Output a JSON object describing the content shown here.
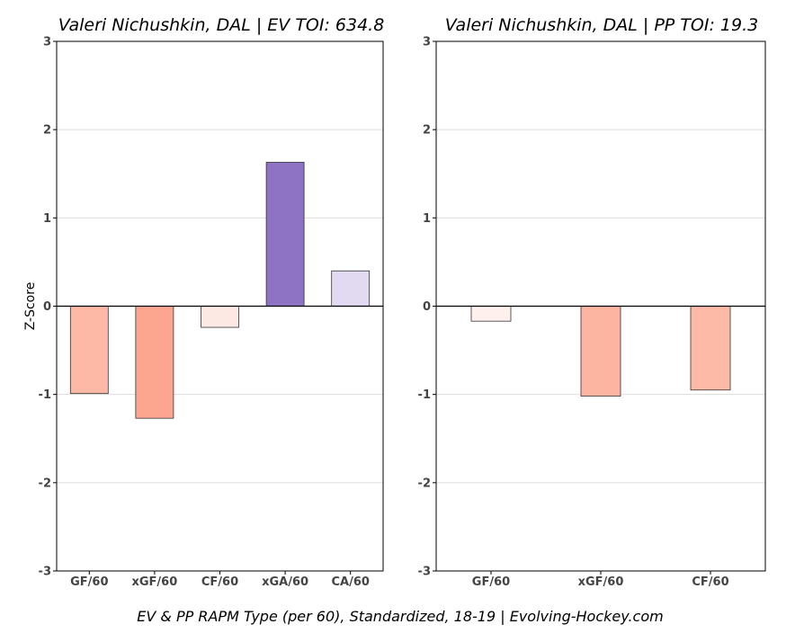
{
  "footer": "EV & PP RAPM Type (per 60), Standardized, 18-19    |    Evolving-Hockey.com",
  "chart_data": [
    {
      "type": "bar",
      "title": "Valeri Nichushkin, DAL  |  EV TOI: 634.8",
      "ylabel": "Z-Score",
      "xlabel": "",
      "ylim": [
        -3,
        3
      ],
      "yticks": [
        3,
        2,
        1,
        0,
        -1,
        -2,
        -3
      ],
      "ytick_labels": [
        "3",
        "2",
        "1",
        "0",
        "-1",
        "-2",
        "-3"
      ],
      "grid": "horizontal",
      "categories": [
        "GF/60",
        "xGF/60",
        "CF/60",
        "xGA/60",
        "CA/60"
      ],
      "values": [
        -0.99,
        -1.27,
        -0.24,
        1.63,
        0.4
      ],
      "colors": [
        "#fdb9a5",
        "#fca68f",
        "#fde9e4",
        "#8e72c3",
        "#e2daf1"
      ]
    },
    {
      "type": "bar",
      "title": "Valeri Nichushkin, DAL  |  PP TOI: 19.3",
      "ylabel": "",
      "xlabel": "",
      "ylim": [
        -3,
        3
      ],
      "yticks": [
        3,
        2,
        1,
        0,
        -1,
        -2,
        -3
      ],
      "ytick_labels": [
        "3",
        "2",
        "1",
        "0",
        "-1",
        "-2",
        "-3"
      ],
      "grid": "horizontal",
      "categories": [
        "GF/60",
        "xGF/60",
        "CF/60"
      ],
      "values": [
        -0.17,
        -1.02,
        -0.95
      ],
      "colors": [
        "#fef0ec",
        "#fcb5a1",
        "#fdbaa6"
      ]
    }
  ]
}
